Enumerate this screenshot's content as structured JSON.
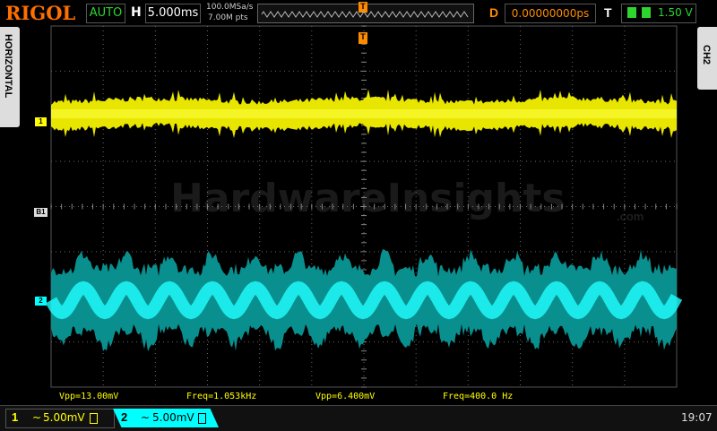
{
  "header": {
    "brand": "RIGOL",
    "mode": "AUTO",
    "timebase_label": "H",
    "timebase": "5.000ms",
    "sample_rate": "100.0MSa/s",
    "memory_depth": "7.00M pts",
    "trigger_marker": "T",
    "delay_label": "D",
    "delay": "0.00000000ps",
    "trigger_label": "T",
    "trigger_level": "1.50 V"
  },
  "side_tabs": {
    "left": "HORIZONTAL",
    "right": "CH2"
  },
  "screen": {
    "trigger_position_marker": "T",
    "channel_markers": [
      "1",
      "B1",
      "2"
    ],
    "watermark": "HardwareInsights",
    "watermark_suffix": ".com"
  },
  "measurements": [
    "Vpp=13.00mV",
    "Freq=1.053kHz",
    "Vpp=6.400mV",
    "Freq=400.0 Hz"
  ],
  "footer": {
    "channels": [
      {
        "label": "1",
        "coupling": "~",
        "scale": "5.00mV"
      },
      {
        "label": "2",
        "coupling": "~",
        "scale": "5.00mV"
      }
    ],
    "time": "19:07"
  }
}
